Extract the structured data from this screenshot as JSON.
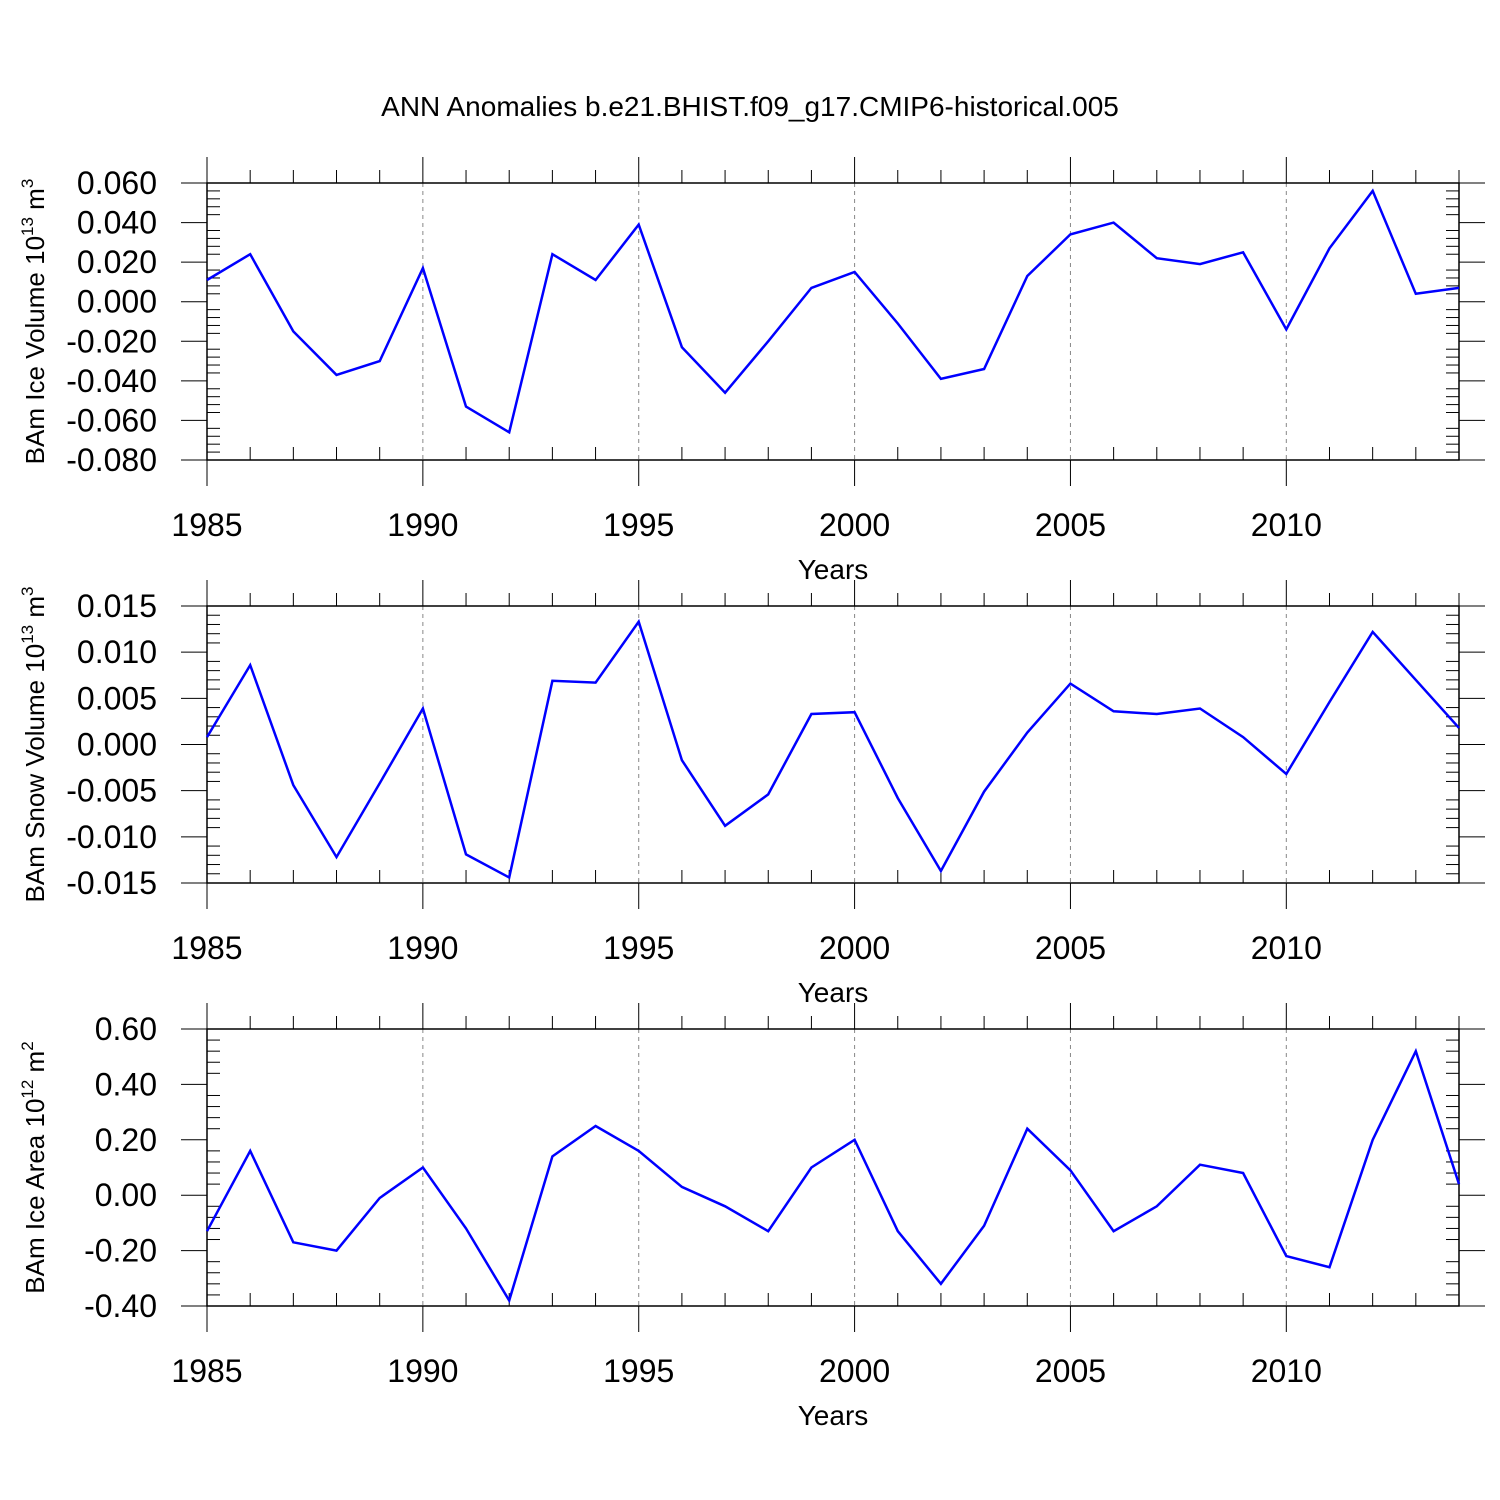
{
  "title": "ANN Anomalies b.e21.BHIST.f09_g17.CMIP6-historical.005",
  "line_color": "#0000ff",
  "chart_data": [
    {
      "type": "line",
      "series_name": "BAm Ice Volume",
      "ylabel": {
        "main": "BAm Ice Volume 10",
        "exp": "13",
        "unit": "m",
        "unit_exp": "3"
      },
      "xlabel": "Years",
      "xlim": [
        1985,
        2014
      ],
      "ylim": [
        -0.08,
        0.06
      ],
      "yticks": [
        -0.08,
        -0.06,
        -0.04,
        -0.02,
        0.0,
        0.02,
        0.04,
        0.06
      ],
      "ytick_labels": [
        "-0.080",
        "-0.060",
        "-0.040",
        "-0.020",
        "0.000",
        "0.020",
        "0.040",
        "0.060"
      ],
      "xticks": [
        1985,
        1990,
        1995,
        2000,
        2005,
        2010
      ],
      "xtick_labels": [
        "1985",
        "1990",
        "1995",
        "2000",
        "2005",
        "2010"
      ],
      "x": [
        1985,
        1986,
        1987,
        1988,
        1989,
        1990,
        1991,
        1992,
        1993,
        1994,
        1995,
        1996,
        1997,
        1998,
        1999,
        2000,
        2001,
        2002,
        2003,
        2004,
        2005,
        2006,
        2007,
        2008,
        2009,
        2010,
        2011,
        2012,
        2013,
        2014
      ],
      "values": [
        0.011,
        0.024,
        -0.015,
        -0.037,
        -0.03,
        0.017,
        -0.053,
        -0.066,
        0.024,
        0.011,
        0.039,
        -0.023,
        -0.046,
        -0.02,
        0.007,
        0.015,
        -0.011,
        -0.039,
        -0.034,
        0.013,
        0.034,
        0.04,
        0.022,
        0.019,
        0.025,
        -0.014,
        0.027,
        0.056,
        0.004,
        0.007
      ]
    },
    {
      "type": "line",
      "series_name": "BAm Snow Volume",
      "ylabel": {
        "main": "BAm Snow Volume 10",
        "exp": "13",
        "unit": "m",
        "unit_exp": "3"
      },
      "xlabel": "Years",
      "xlim": [
        1985,
        2014
      ],
      "ylim": [
        -0.015,
        0.015
      ],
      "yticks": [
        -0.015,
        -0.01,
        -0.005,
        0.0,
        0.005,
        0.01,
        0.015
      ],
      "ytick_labels": [
        "-0.015",
        "-0.010",
        "-0.005",
        "0.000",
        "0.005",
        "0.010",
        "0.015"
      ],
      "xticks": [
        1985,
        1990,
        1995,
        2000,
        2005,
        2010
      ],
      "xtick_labels": [
        "1985",
        "1990",
        "1995",
        "2000",
        "2005",
        "2010"
      ],
      "x": [
        1985,
        1986,
        1987,
        1988,
        1989,
        1990,
        1991,
        1992,
        1993,
        1994,
        1995,
        1996,
        1997,
        1998,
        1999,
        2000,
        2001,
        2002,
        2003,
        2004,
        2005,
        2006,
        2007,
        2008,
        2009,
        2010,
        2011,
        2012,
        2013,
        2014
      ],
      "values": [
        0.0008,
        0.0086,
        -0.0044,
        -0.0122,
        -0.0042,
        0.0039,
        -0.0119,
        -0.0144,
        0.0069,
        0.0067,
        0.0133,
        -0.0017,
        -0.0088,
        -0.0054,
        0.0033,
        0.0035,
        -0.0058,
        -0.0137,
        -0.0051,
        0.0013,
        0.0066,
        0.0036,
        0.0033,
        0.0039,
        0.0008,
        -0.0032,
        0.0046,
        0.0122,
        0.007,
        0.0018
      ]
    },
    {
      "type": "line",
      "series_name": "BAm Ice Area",
      "ylabel": {
        "main": "BAm Ice Area 10",
        "exp": "12",
        "unit": "m",
        "unit_exp": "2"
      },
      "xlabel": "Years",
      "xlim": [
        1985,
        2014
      ],
      "ylim": [
        -0.4,
        0.6
      ],
      "yticks": [
        -0.4,
        -0.2,
        0.0,
        0.2,
        0.4,
        0.6
      ],
      "ytick_labels": [
        "-0.40",
        "-0.20",
        "0.00",
        "0.20",
        "0.40",
        "0.60"
      ],
      "xticks": [
        1985,
        1990,
        1995,
        2000,
        2005,
        2010
      ],
      "xtick_labels": [
        "1985",
        "1990",
        "1995",
        "2000",
        "2005",
        "2010"
      ],
      "x": [
        1985,
        1986,
        1987,
        1988,
        1989,
        1990,
        1991,
        1992,
        1993,
        1994,
        1995,
        1996,
        1997,
        1998,
        1999,
        2000,
        2001,
        2002,
        2003,
        2004,
        2005,
        2006,
        2007,
        2008,
        2009,
        2010,
        2011,
        2012,
        2013,
        2014
      ],
      "values": [
        -0.13,
        0.16,
        -0.17,
        -0.2,
        -0.01,
        0.1,
        -0.12,
        -0.38,
        0.14,
        0.25,
        0.16,
        0.03,
        -0.04,
        -0.13,
        0.1,
        0.2,
        -0.13,
        -0.32,
        -0.11,
        0.24,
        0.09,
        -0.13,
        -0.04,
        0.11,
        0.08,
        -0.22,
        -0.26,
        0.2,
        0.52,
        0.04
      ]
    }
  ]
}
